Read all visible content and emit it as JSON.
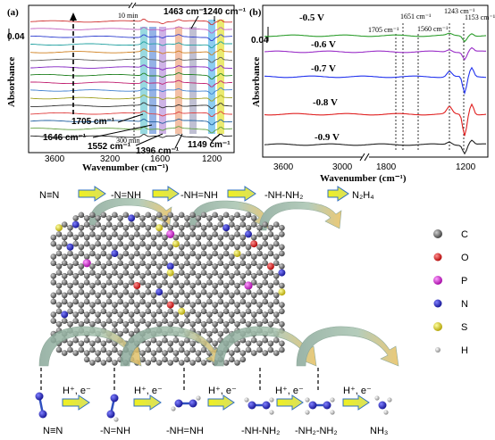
{
  "panel_a": {
    "label": "(a)",
    "scale_bar": "0.04",
    "ylabel": "Absorbance",
    "xlabel": "Wavenumber (cm⁻¹)",
    "xticks": [
      "3600",
      "3200",
      "1600",
      "1200"
    ],
    "time_start": "10 min",
    "time_end": "300 min",
    "peak_labels": [
      "1463 cm⁻¹",
      "1240 cm⁻¹",
      "1705 cm⁻¹",
      "1646 cm⁻¹",
      "1552 cm⁻¹",
      "1396 cm⁻¹",
      "1149 cm⁻¹"
    ]
  },
  "panel_b": {
    "label": "(b)",
    "scale_bar": "0.04",
    "ylabel": "Absorbance",
    "xlabel": "Wavenumber (cm⁻¹)",
    "xticks": [
      "3600",
      "3000",
      "1800",
      "1200"
    ],
    "peak_labels": [
      "1651 cm⁻¹",
      "1243 cm⁻¹",
      "1153 cm⁻¹",
      "1705 cm⁻¹",
      "1560 cm⁻¹"
    ],
    "voltages": [
      "-0.5 V",
      "-0.6 V",
      "-0.7 V",
      "-0.8 V",
      "-0.9 V"
    ],
    "colors": [
      "#2e9e2e",
      "#9b30c8",
      "#2233ee",
      "#e02020",
      "#222222"
    ]
  },
  "scheme": {
    "top_steps": [
      "N≡N",
      "-N=NH",
      "-NH=NH",
      "-NH-NH₂",
      "N₂H₄"
    ],
    "bottom_steps": [
      "N≡N",
      "-N=NH",
      "-NH=NH",
      "-NH-NH₂",
      "-NH₂-NH₂",
      "NH₃"
    ],
    "step_label": "H⁺, e⁻",
    "legend": [
      {
        "symbol": "C",
        "color": "#555555"
      },
      {
        "symbol": "O",
        "color": "#d42020"
      },
      {
        "symbol": "P",
        "color": "#d020d0"
      },
      {
        "symbol": "N",
        "color": "#2020c0"
      },
      {
        "symbol": "S",
        "color": "#e0d020"
      },
      {
        "symbol": "H",
        "color": "#bbbbbb"
      }
    ]
  }
}
